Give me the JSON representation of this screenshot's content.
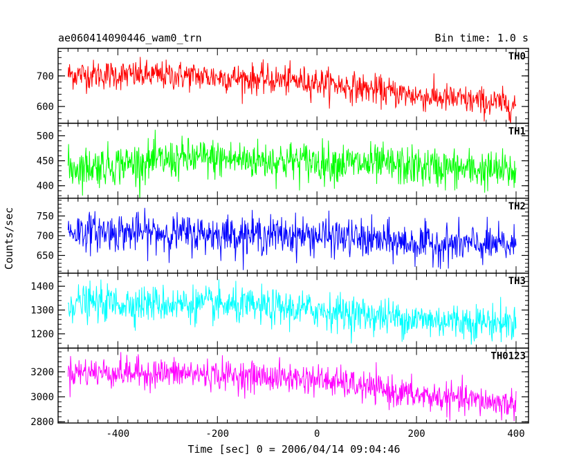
{
  "header": {
    "left": "ae060414090446_wam0_trn",
    "right": "Bin time: 1.0 s"
  },
  "chart_data": {
    "type": "line",
    "title": "ae060414090446_wam0_trn",
    "bin_time_label": "Bin time: 1.0 s",
    "xlabel": "Time [sec] 0 = 2006/04/14 09:04:46",
    "ylabel": "Counts/sec",
    "xlim": [
      -520,
      425
    ],
    "x_ticks": [
      -400,
      -200,
      0,
      200,
      400
    ],
    "x_tick_labels": [
      "-400",
      "-200",
      "0",
      "200",
      "400"
    ],
    "x_range": [
      -500,
      400
    ],
    "bin_time_s": 1.0,
    "grid": false,
    "legend": "none",
    "panels": [
      {
        "name": "TH0",
        "color": "#ff0000",
        "ylim": [
          545,
          790
        ],
        "yticks": [
          600,
          700
        ],
        "ytick_labels": [
          "600",
          "700"
        ],
        "trend": [
          [
            -500,
            705
          ],
          [
            -250,
            700
          ],
          [
            0,
            680
          ],
          [
            200,
            635
          ],
          [
            400,
            605
          ]
        ],
        "noise": 24
      },
      {
        "name": "TH1",
        "color": "#00ff00",
        "ylim": [
          375,
          525
        ],
        "yticks": [
          400,
          450,
          500
        ],
        "ytick_labels": [
          "400",
          "450",
          "500"
        ],
        "trend": [
          [
            -500,
            435
          ],
          [
            -250,
            455
          ],
          [
            0,
            448
          ],
          [
            200,
            438
          ],
          [
            400,
            428
          ]
        ],
        "noise": 20
      },
      {
        "name": "TH2",
        "color": "#0000ff",
        "ylim": [
          605,
          795
        ],
        "yticks": [
          650,
          700,
          750
        ],
        "ytick_labels": [
          "650",
          "700",
          "750"
        ],
        "trend": [
          [
            -500,
            712
          ],
          [
            -250,
            705
          ],
          [
            0,
            700
          ],
          [
            200,
            680
          ],
          [
            400,
            675
          ]
        ],
        "noise": 24
      },
      {
        "name": "TH3",
        "color": "#00ffff",
        "ylim": [
          1140,
          1455
        ],
        "yticks": [
          1200,
          1300,
          1400
        ],
        "ytick_labels": [
          "1200",
          "1300",
          "1400"
        ],
        "trend": [
          [
            -500,
            1330
          ],
          [
            -250,
            1325
          ],
          [
            0,
            1300
          ],
          [
            200,
            1260
          ],
          [
            400,
            1245
          ]
        ],
        "noise": 38
      },
      {
        "name": "TH0123",
        "color": "#ff00ff",
        "ylim": [
          2790,
          3390
        ],
        "yticks": [
          2800,
          3000,
          3200
        ],
        "ytick_labels": [
          "2800",
          "3000",
          "3200"
        ],
        "trend": [
          [
            -500,
            3200
          ],
          [
            -250,
            3185
          ],
          [
            0,
            3140
          ],
          [
            200,
            3010
          ],
          [
            400,
            2940
          ]
        ],
        "noise": 60
      }
    ]
  }
}
